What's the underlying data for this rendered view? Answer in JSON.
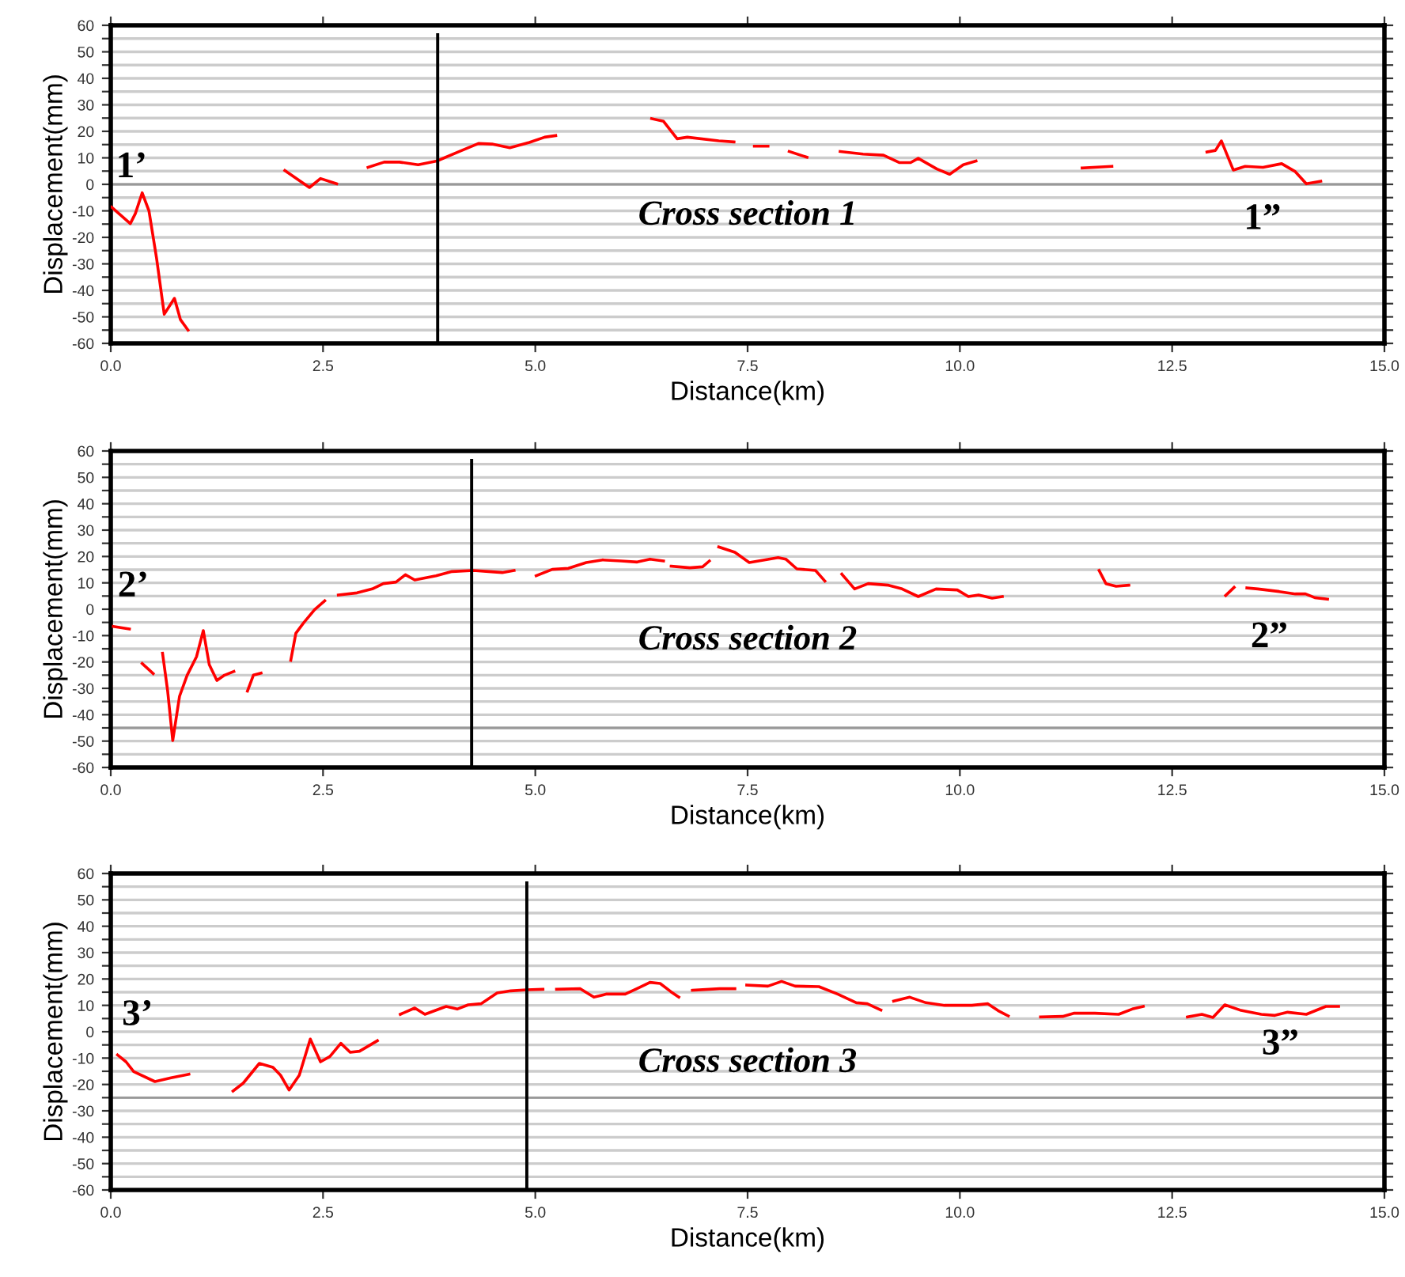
{
  "chart_data": [
    {
      "type": "line",
      "xlabel": "Distance(km)",
      "ylabel": "Displacement(mm)",
      "xlim": [
        0,
        15
      ],
      "ylim": [
        -60,
        60
      ],
      "xticks": [
        {
          "value": 0,
          "label": "0.0"
        },
        {
          "value": 2.5,
          "label": "2.5"
        },
        {
          "value": 5,
          "label": "5.0"
        },
        {
          "value": 7.5,
          "label": "7.5"
        },
        {
          "value": 10,
          "label": "10.0"
        },
        {
          "value": 12.5,
          "label": "12.5"
        },
        {
          "value": 15,
          "label": "15.0"
        }
      ],
      "yticks": [
        -60,
        {
          "value": -55,
          "label": null
        },
        -50,
        {
          "value": -45,
          "label": null
        },
        -40,
        {
          "value": -35,
          "label": null
        },
        -30,
        {
          "value": -25,
          "label": null
        },
        -20,
        {
          "value": -15,
          "label": null
        },
        -10,
        {
          "value": -5,
          "label": null
        },
        0,
        {
          "value": 5,
          "label": null
        },
        10,
        {
          "value": 15,
          "label": null
        },
        20,
        {
          "value": 25,
          "label": null
        },
        30,
        {
          "value": 35,
          "label": null
        },
        40,
        {
          "value": 45,
          "label": null
        },
        50,
        {
          "value": 55,
          "label": null
        },
        60
      ],
      "grid": "y",
      "series": [
        {
          "color": "#ff0000",
          "x": [
            0.01,
            0.23,
            0.29,
            0.37,
            0.45,
            0.54,
            0.63,
            0.75,
            0.82,
            0.91,
            null,
            2.05,
            2.34,
            2.47,
            2.66,
            null,
            3.03,
            3.22,
            3.4,
            3.62,
            3.84,
            4.09,
            4.33,
            4.49,
            4.7,
            4.93,
            5.11,
            5.24,
            null,
            6.37,
            6.51,
            6.67,
            6.79,
            7.16,
            7.34,
            null,
            7.58,
            7.74,
            null,
            7.99,
            8.2,
            null,
            8.59,
            8.86,
            9.1,
            9.29,
            9.42,
            9.51,
            9.73,
            9.88,
            10.04,
            10.19,
            null,
            11.44,
            11.79,
            null,
            12.91,
            13.01,
            13.08,
            13.22,
            13.36,
            13.57,
            13.79,
            13.95,
            14.08,
            14.25
          ],
          "values": [
            -8.6,
            -14.8,
            -11,
            -3.2,
            -10,
            -28,
            -49,
            -43,
            -51,
            -55,
            null,
            5.2,
            -1.2,
            2.2,
            0.2,
            null,
            6.4,
            8.4,
            8.4,
            7.4,
            8.8,
            12.2,
            15.4,
            15.2,
            13.8,
            15.8,
            17.8,
            18.4,
            null,
            24.8,
            23.8,
            17.2,
            17.8,
            16.4,
            16,
            null,
            14.4,
            14.4,
            null,
            12.4,
            10.2,
            null,
            12.4,
            11.4,
            11,
            8.2,
            8.2,
            9.8,
            5.8,
            3.8,
            7.4,
            8.8,
            null,
            6.2,
            6.8,
            null,
            12.2,
            12.8,
            16.4,
            5.4,
            6.8,
            6.4,
            7.8,
            4.8,
            0.2,
            1.2
          ]
        }
      ],
      "ref_lines": [
        {
          "axis": "x",
          "value": 3.85,
          "color": "#000000"
        },
        {
          "axis": "y",
          "value": 0,
          "color": "#999999"
        }
      ],
      "annotations": [
        {
          "text": "1’",
          "x": 0.01,
          "y": -8.6
        },
        {
          "text": "1”",
          "x": 14.25,
          "y": 1.2
        },
        "Cross section 1"
      ]
    },
    {
      "type": "line",
      "xlabel": "Distance(km)",
      "ylabel": "Displacement(mm)",
      "xlim": [
        0,
        15
      ],
      "ylim": [
        -60,
        60
      ],
      "xticks": [
        {
          "value": 0,
          "label": "0.0"
        },
        {
          "value": 2.5,
          "label": "2.5"
        },
        {
          "value": 5,
          "label": "5.0"
        },
        {
          "value": 7.5,
          "label": "7.5"
        },
        {
          "value": 10,
          "label": "10.0"
        },
        {
          "value": 12.5,
          "label": "12.5"
        },
        {
          "value": 15,
          "label": "15.0"
        }
      ],
      "yticks": [
        -60,
        {
          "value": -55,
          "label": null
        },
        -50,
        {
          "value": -45,
          "label": null
        },
        -40,
        {
          "value": -35,
          "label": null
        },
        -30,
        {
          "value": -25,
          "label": null
        },
        -20,
        {
          "value": -15,
          "label": null
        },
        -10,
        {
          "value": -5,
          "label": null
        },
        0,
        {
          "value": 5,
          "label": null
        },
        10,
        {
          "value": 15,
          "label": null
        },
        20,
        {
          "value": 25,
          "label": null
        },
        30,
        {
          "value": 35,
          "label": null
        },
        40,
        {
          "value": 45,
          "label": null
        },
        50,
        {
          "value": 55,
          "label": null
        },
        60
      ],
      "grid": "y",
      "series": [
        {
          "color": "#ff0000",
          "x": [
            0.03,
            0.22,
            null,
            0.37,
            0.5,
            null,
            0.61,
            0.67,
            0.73,
            0.81,
            0.9,
            1.01,
            1.09,
            1.16,
            1.25,
            1.34,
            1.45,
            null,
            1.61,
            1.68,
            1.77,
            null,
            2.12,
            2.18,
            2.27,
            2.4,
            2.52,
            null,
            2.68,
            2.9,
            3.08,
            3.21,
            3.36,
            3.47,
            3.58,
            3.83,
            4.02,
            4.27,
            4.45,
            4.61,
            4.75,
            null,
            5.01,
            5.2,
            5.39,
            5.6,
            5.79,
            6.01,
            6.2,
            6.35,
            6.51,
            null,
            6.6,
            6.82,
            6.97,
            7.05,
            null,
            7.16,
            7.35,
            7.52,
            7.86,
            7.95,
            8.08,
            8.3,
            8.41,
            null,
            8.61,
            8.76,
            8.92,
            9.16,
            9.32,
            9.51,
            9.72,
            9.97,
            10.1,
            10.22,
            10.38,
            10.5,
            null,
            11.64,
            11.72,
            11.84,
            11.99,
            null,
            13.13,
            13.23,
            null,
            13.38,
            13.51,
            13.76,
            13.95,
            14.07,
            14.18,
            14.33
          ],
          "values": [
            -6.5,
            -7.5,
            null,
            -20.6,
            -24.4,
            null,
            -16.7,
            -31,
            -49.8,
            -33,
            -25,
            -18,
            -8.1,
            -21,
            -27,
            -25,
            -23.6,
            null,
            -31,
            -25,
            -24.2,
            null,
            -19.4,
            -9.1,
            -5.2,
            -0.2,
            3.2,
            null,
            5.4,
            6.2,
            7.7,
            9.7,
            10.3,
            13.1,
            11.1,
            12.7,
            14.3,
            14.7,
            14.3,
            13.9,
            14.7,
            null,
            12.7,
            15.1,
            15.5,
            17.7,
            18.7,
            18.3,
            17.9,
            19,
            18.3,
            null,
            16.3,
            15.7,
            16.1,
            18.3,
            null,
            23.6,
            21.6,
            17.7,
            19.6,
            19,
            15.3,
            14.7,
            10.7,
            null,
            13.3,
            7.7,
            9.7,
            9.1,
            7.7,
            4.8,
            7.7,
            7.3,
            4.8,
            5.4,
            4.2,
            4.8,
            null,
            14.7,
            9.7,
            8.7,
            9.1,
            null,
            5.2,
            8.3,
            null,
            8.1,
            7.7,
            6.7,
            5.8,
            5.8,
            4.4,
            3.8
          ]
        }
      ],
      "ref_lines": [
        {
          "axis": "x",
          "value": 4.25,
          "color": "#000000"
        },
        {
          "axis": "y",
          "value": -45,
          "color": "#999999"
        }
      ],
      "annotations": [
        {
          "text": "2’",
          "x": 0.03,
          "y": -6.5
        },
        {
          "text": "2”",
          "x": 14.33,
          "y": 3.8
        },
        "Cross section 2"
      ]
    },
    {
      "type": "line",
      "xlabel": "Distance(km)",
      "ylabel": "Displacement(mm)",
      "xlim": [
        0,
        15
      ],
      "ylim": [
        -60,
        60
      ],
      "xticks": [
        {
          "value": 0,
          "label": "0.0"
        },
        {
          "value": 2.5,
          "label": "2.5"
        },
        {
          "value": 5,
          "label": "5.0"
        },
        {
          "value": 7.5,
          "label": "7.5"
        },
        {
          "value": 10,
          "label": "10.0"
        },
        {
          "value": 12.5,
          "label": "12.5"
        },
        {
          "value": 15,
          "label": "15.0"
        }
      ],
      "yticks": [
        -60,
        {
          "value": -55,
          "label": null
        },
        -50,
        {
          "value": -45,
          "label": null
        },
        -40,
        {
          "value": -35,
          "label": null
        },
        -30,
        {
          "value": -25,
          "label": null
        },
        -20,
        {
          "value": -15,
          "label": null
        },
        -10,
        {
          "value": -5,
          "label": null
        },
        0,
        {
          "value": 5,
          "label": null
        },
        10,
        {
          "value": 15,
          "label": null
        },
        20,
        {
          "value": 25,
          "label": null
        },
        30,
        {
          "value": 35,
          "label": null
        },
        40,
        {
          "value": 45,
          "label": null
        },
        50,
        {
          "value": 55,
          "label": null
        },
        60
      ],
      "grid": "y",
      "series": [
        {
          "color": "#ff0000",
          "x": [
            0.08,
            0.18,
            0.27,
            0.52,
            0.71,
            0.92,
            null,
            1.44,
            1.56,
            1.75,
            1.91,
            2.0,
            2.1,
            2.22,
            2.35,
            2.47,
            2.58,
            2.71,
            2.82,
            2.93,
            3.14,
            null,
            3.41,
            3.58,
            3.7,
            3.95,
            4.08,
            4.21,
            4.36,
            4.55,
            4.71,
            4.9,
            5.09,
            null,
            5.25,
            5.53,
            5.69,
            5.84,
            6.06,
            6.22,
            6.35,
            6.47,
            6.6,
            6.69,
            null,
            6.85,
            7.17,
            7.35,
            null,
            7.49,
            7.74,
            7.9,
            8.06,
            8.34,
            8.56,
            8.78,
            8.91,
            9.07,
            null,
            9.22,
            9.41,
            9.6,
            9.82,
            10.14,
            10.33,
            10.45,
            10.57,
            null,
            10.95,
            11.21,
            11.34,
            11.59,
            11.87,
            12.03,
            12.16,
            null,
            12.68,
            12.85,
            12.98,
            13.12,
            13.3,
            13.55,
            13.71,
            13.86,
            14.08,
            14.31,
            14.46
          ],
          "values": [
            -8.8,
            -11.4,
            -15.1,
            -18.9,
            -17.5,
            -16.1,
            null,
            -22.5,
            -19.5,
            -12,
            -13.5,
            -16.5,
            -22.1,
            -16.5,
            -2.8,
            -11.4,
            -9.4,
            -4.4,
            -7.8,
            -7.4,
            -3.4,
            null,
            6.6,
            9,
            6.6,
            9.6,
            8.6,
            10.2,
            10.6,
            14.7,
            15.5,
            15.9,
            16.1,
            null,
            16.1,
            16.3,
            13.1,
            14.3,
            14.3,
            16.7,
            18.7,
            18.3,
            15.1,
            13.1,
            null,
            15.7,
            16.3,
            16.3,
            null,
            17.7,
            17.3,
            19.1,
            17.3,
            17.1,
            14.3,
            11,
            10.6,
            8.2,
            null,
            11.6,
            13.1,
            11,
            10,
            10,
            10.6,
            8,
            6,
            null,
            5.6,
            5.8,
            7,
            7,
            6.6,
            8.6,
            9.6,
            null,
            5.6,
            6.6,
            5.4,
            10.2,
            8.2,
            6.6,
            6.2,
            7.4,
            6.6,
            9.6,
            9.6
          ]
        }
      ],
      "ref_lines": [
        {
          "axis": "x",
          "value": 4.9,
          "color": "#000000"
        },
        {
          "axis": "y",
          "value": -25,
          "color": "#999999"
        }
      ],
      "annotations": [
        {
          "text": "3’",
          "x": 0.08,
          "y": -8.8
        },
        {
          "text": "3”",
          "x": 14.46,
          "y": 9.6
        },
        "Cross section 3"
      ]
    }
  ]
}
